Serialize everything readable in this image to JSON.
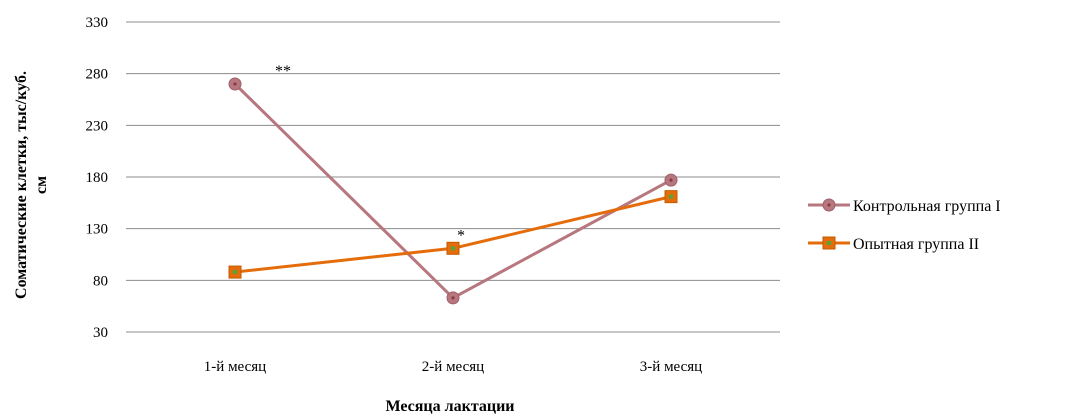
{
  "chart_data": {
    "type": "line",
    "title": "",
    "xlabel": "Месяца лактации",
    "ylabel": "Соматические клетки, тыс/куб. см",
    "ylabel_lines": [
      "Соматические клетки, тыс/куб.",
      "см"
    ],
    "categories": [
      "1-й месяц",
      "2-й месяц",
      "3-й месяц"
    ],
    "ylim": [
      30,
      330
    ],
    "yticks": [
      "30",
      "80",
      "130",
      "180",
      "230",
      "280",
      "330"
    ],
    "grid": true,
    "legend_position": "right",
    "series": [
      {
        "name": "Контрольная группа  I",
        "values": [
          270,
          63,
          177
        ],
        "color": "#b7777f",
        "marker": "circle",
        "marker_center_color": "#8b3a46"
      },
      {
        "name": "Опытная группа II",
        "values": [
          88,
          111,
          161
        ],
        "color": "#e46c0a",
        "marker": "square",
        "marker_center_color": "#4fa63a"
      }
    ],
    "annotations": [
      {
        "category": "1-й месяц",
        "series": 0,
        "text": "**"
      },
      {
        "category": "2-й месяц",
        "series": 1,
        "text": "*"
      }
    ]
  }
}
